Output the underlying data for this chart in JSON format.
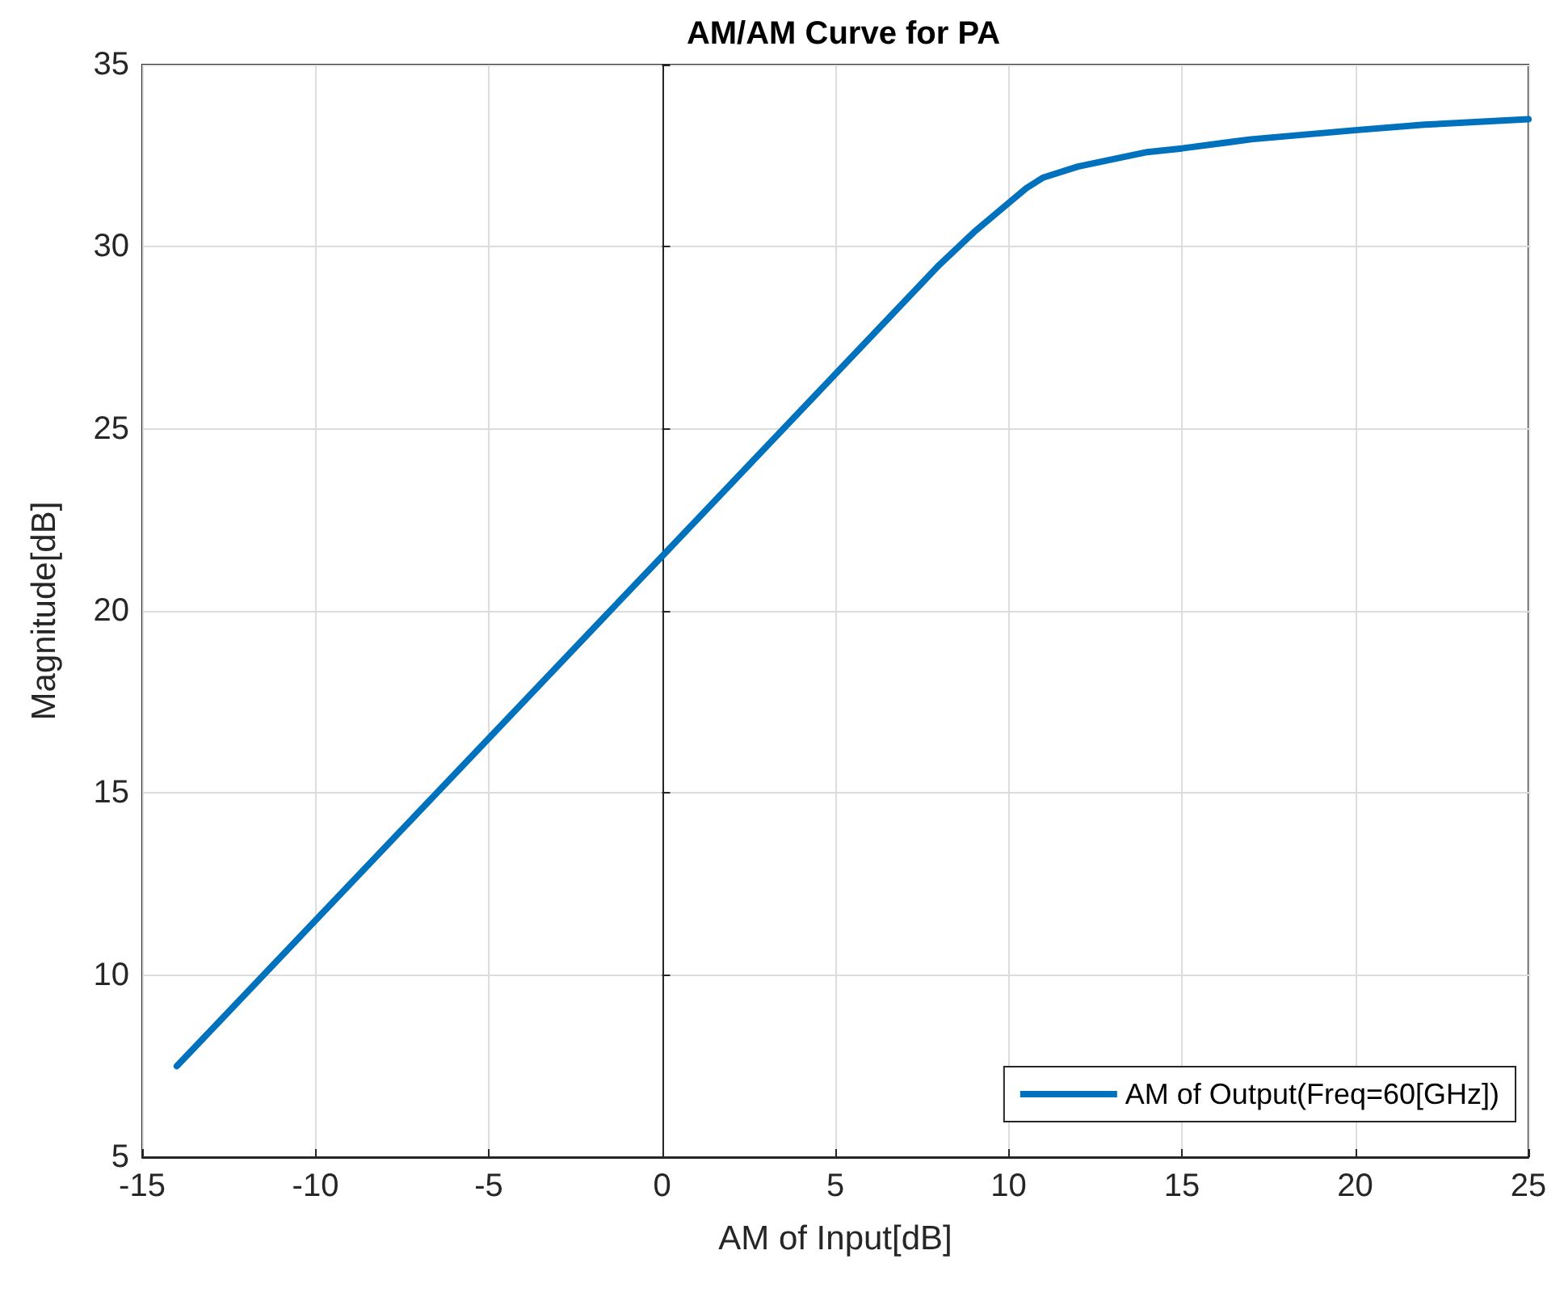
{
  "chart_data": {
    "type": "line",
    "title": "AM/AM Curve for PA",
    "xlabel": "AM of Input[dB]",
    "ylabel": "Magnitude[dB]",
    "series": [
      {
        "name": "AM of Output(Freq=60[GHz])",
        "color": "#0072bd",
        "x": [
          -14,
          -10,
          -5,
          0,
          5,
          8,
          9,
          10,
          10.5,
          11,
          12,
          13,
          14,
          15,
          17,
          20,
          22,
          25
        ],
        "values": [
          7.5,
          11.5,
          16.5,
          21.5,
          26.5,
          29.5,
          30.4,
          31.2,
          31.6,
          31.9,
          32.2,
          32.4,
          32.6,
          32.7,
          32.95,
          33.2,
          33.35,
          33.5
        ]
      }
    ],
    "xlim": [
      -15,
      25
    ],
    "xticks": [
      -15,
      -10,
      -5,
      0,
      5,
      10,
      15,
      20,
      25
    ],
    "ylim": [
      5,
      35
    ],
    "yticks": [
      5,
      10,
      15,
      20,
      25,
      30,
      35
    ],
    "grid": true,
    "legend": "bottom right",
    "marker": "none",
    "line_style": "solid"
  }
}
